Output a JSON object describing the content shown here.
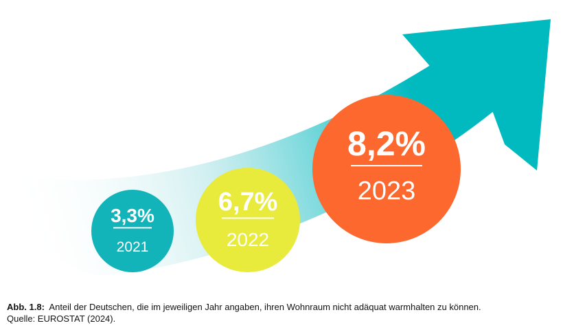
{
  "chart_data": {
    "type": "bubble",
    "categories": [
      "2021",
      "2022",
      "2023"
    ],
    "values": [
      3.3,
      6.7,
      8.2
    ],
    "value_labels": [
      "3,3%",
      "6,7%",
      "8,2%"
    ],
    "colors": [
      "#13B3BA",
      "#E8EA3C",
      "#FD682F"
    ],
    "arrow_color": "#00BAC0"
  },
  "caption": {
    "label": "Abb. 1.8:",
    "text": "Anteil der Deutschen, die im jeweiligen Jahr angaben, ihren Wohnraum nicht adäquat warmhalten zu können.",
    "source": "Quelle: EUROSTAT (2024)."
  }
}
